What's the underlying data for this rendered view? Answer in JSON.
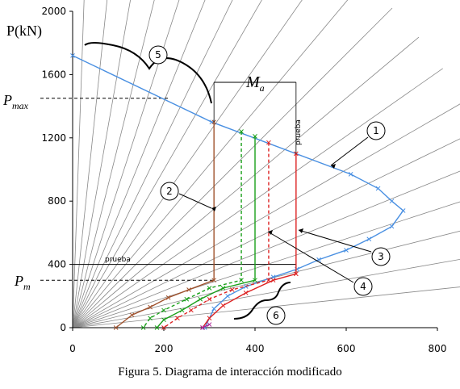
{
  "chart_data": {
    "type": "line",
    "caption": "Figura 5. Diagrama de interacción modificado",
    "ylabel": "P(kN)",
    "xlim": [
      0,
      800
    ],
    "ylim": [
      0,
      2000
    ],
    "x_ticks": [
      "0",
      "200",
      "400",
      "600",
      "800"
    ],
    "y_ticks": [
      "0",
      "400",
      "800",
      "1200",
      "1600",
      "2000"
    ],
    "y_ticks_values": [
      0,
      400,
      800,
      1200,
      1600,
      2000
    ],
    "x_ticks_values": [
      0,
      200,
      400,
      600,
      800
    ],
    "reference_lines": [
      {
        "label": "P_max",
        "value": 1450
      },
      {
        "label": "P_m",
        "value": 300
      }
    ],
    "prueba_line_value": 400,
    "prueba_labels": [
      "prueba",
      "prueba"
    ],
    "ma_label": "M_a",
    "ma_range": [
      310,
      490
    ],
    "callouts": [
      "1",
      "2",
      "3",
      "4",
      "5",
      "6"
    ],
    "colors": {
      "envelope": "#4a90e2",
      "brown": "#a0522d",
      "green": "#1aa01a",
      "red": "#dd2222",
      "magenta": "#b0279a",
      "rays": "#888888"
    },
    "series": [
      {
        "color": "blue",
        "points": [
          [
            0,
            1720
          ],
          [
            305,
            1300
          ],
          [
            610,
            970
          ],
          [
            670,
            880
          ],
          [
            700,
            800
          ],
          [
            725,
            740
          ],
          [
            700,
            640
          ],
          [
            650,
            560
          ],
          [
            600,
            490
          ],
          [
            540,
            430
          ],
          [
            492,
            370
          ],
          [
            440,
            320
          ],
          [
            380,
            260
          ],
          [
            340,
            200
          ],
          [
            310,
            120
          ],
          [
            290,
            0
          ]
        ]
      },
      {
        "color": "brown",
        "points": [
          [
            310,
            1300
          ],
          [
            310,
            300
          ],
          [
            255,
            240
          ],
          [
            210,
            190
          ],
          [
            170,
            130
          ],
          [
            130,
            80
          ],
          [
            95,
            0
          ]
        ]
      },
      {
        "color": "green",
        "dashed": true,
        "points": [
          [
            370,
            1240
          ],
          [
            370,
            300
          ],
          [
            300,
            250
          ],
          [
            250,
            180
          ],
          [
            200,
            110
          ],
          [
            170,
            60
          ],
          [
            155,
            0
          ]
        ]
      },
      {
        "color": "green",
        "points": [
          [
            400,
            1210
          ],
          [
            400,
            300
          ],
          [
            330,
            250
          ],
          [
            280,
            180
          ],
          [
            240,
            110
          ],
          [
            200,
            50
          ],
          [
            185,
            0
          ]
        ]
      },
      {
        "color": "red",
        "dashed": true,
        "points": [
          [
            430,
            1170
          ],
          [
            430,
            300
          ],
          [
            350,
            240
          ],
          [
            300,
            180
          ],
          [
            260,
            110
          ],
          [
            230,
            60
          ],
          [
            200,
            0
          ]
        ]
      },
      {
        "color": "red",
        "points": [
          [
            490,
            1100
          ],
          [
            490,
            340
          ],
          [
            440,
            300
          ],
          [
            380,
            220
          ],
          [
            330,
            140
          ],
          [
            300,
            60
          ],
          [
            285,
            0
          ]
        ]
      },
      {
        "color": "magenta",
        "points": [
          [
            285,
            0
          ],
          [
            300,
            20
          ]
        ]
      }
    ]
  }
}
